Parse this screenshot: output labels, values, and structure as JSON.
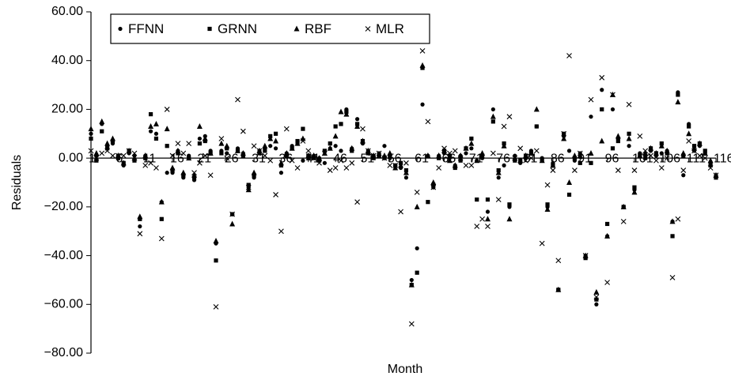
{
  "chart_data": {
    "type": "scatter",
    "y_label": "Residuals",
    "x_label": "Month",
    "x": [
      1,
      2,
      3,
      4,
      5,
      6,
      7,
      8,
      9,
      10,
      11,
      12,
      13,
      14,
      15,
      16,
      17,
      18,
      19,
      20,
      21,
      22,
      23,
      24,
      25,
      26,
      27,
      28,
      29,
      30,
      31,
      32,
      33,
      34,
      35,
      36,
      37,
      38,
      39,
      40,
      41,
      42,
      43,
      44,
      45,
      46,
      47,
      48,
      49,
      50,
      51,
      52,
      53,
      54,
      55,
      56,
      57,
      58,
      59,
      60,
      61,
      62,
      63,
      64,
      65,
      66,
      67,
      68,
      69,
      70,
      71,
      72,
      73,
      74,
      75,
      76,
      77,
      78,
      79,
      80,
      81,
      82,
      83,
      84,
      85,
      86,
      87,
      88,
      89,
      90,
      91,
      92,
      93,
      94,
      95,
      96,
      97,
      98,
      99,
      100,
      101,
      102,
      103,
      104,
      105,
      106,
      107,
      108,
      109,
      110,
      111,
      112,
      113,
      114,
      115,
      116
    ],
    "xlim": [
      1,
      116
    ],
    "xticks": [
      1,
      6,
      11,
      16,
      21,
      26,
      31,
      36,
      41,
      46,
      51,
      56,
      61,
      66,
      71,
      76,
      81,
      86,
      91,
      96,
      101,
      106,
      111,
      116
    ],
    "ylim": [
      -80,
      60
    ],
    "yticks": [
      {
        "value": -80,
        "label": "−80.00"
      },
      {
        "value": -60,
        "label": "−60.00"
      },
      {
        "value": -40,
        "label": "−40.00"
      },
      {
        "value": -20,
        "label": "−20.00"
      },
      {
        "value": 0,
        "label": "0.00"
      },
      {
        "value": 20,
        "label": "20.00"
      },
      {
        "value": 40,
        "label": "40.00"
      },
      {
        "value": 60,
        "label": "60.00"
      }
    ],
    "legend": "upper left",
    "series": [
      {
        "name": "FFNN",
        "marker": "circle",
        "color": "#000000",
        "values": [
          10,
          1,
          14,
          5,
          6,
          1,
          -3,
          2,
          1,
          -28,
          1,
          11,
          10,
          -18,
          -6,
          -6,
          3,
          -8,
          1,
          -9,
          8,
          9,
          3,
          -35,
          3,
          2,
          -23,
          4,
          2,
          -12,
          -8,
          3,
          4,
          5,
          4,
          -6,
          2,
          5,
          6,
          -1,
          0,
          1,
          0,
          -2,
          4,
          5,
          3,
          20,
          4,
          16,
          6,
          3,
          1,
          2,
          5,
          0,
          -3,
          -4,
          -8,
          -50,
          -37,
          22,
          1,
          -12,
          1,
          2,
          0,
          -3,
          1,
          2,
          4,
          -1,
          0,
          -22,
          20,
          -8,
          -3,
          -20,
          1,
          -2,
          0,
          3,
          13,
          0,
          -20,
          -2,
          -54,
          9,
          3,
          -1,
          2,
          -40,
          17,
          -60,
          28,
          -32,
          20,
          8,
          -20,
          5,
          -13,
          2,
          1,
          3,
          1,
          2,
          3,
          -26,
          27,
          -7,
          14,
          3,
          5,
          2,
          -2,
          -7
        ]
      },
      {
        "name": "GRNN",
        "marker": "square",
        "color": "#000000",
        "values": [
          8,
          -1,
          11,
          4,
          7,
          0,
          -2,
          3,
          -1,
          -25,
          0,
          18,
          8,
          -25,
          5,
          -5,
          2,
          -7,
          0,
          -8,
          6,
          7,
          2,
          -42,
          2,
          4,
          -23,
          3,
          1,
          -11,
          -7,
          2,
          3,
          9,
          10,
          -3,
          1,
          4,
          7,
          12,
          1,
          0,
          -1,
          3,
          6,
          13,
          14,
          19,
          3,
          14,
          7,
          2,
          0,
          1,
          0,
          1,
          -3,
          -2,
          -5,
          -52,
          -47,
          37,
          -18,
          -11,
          0,
          3,
          1,
          -4,
          -1,
          4,
          8,
          -17,
          1,
          -17,
          15,
          -5,
          6,
          -19,
          -1,
          -1,
          1,
          2,
          13,
          -1,
          -19,
          -3,
          -54,
          10,
          -15,
          0,
          -2,
          -41,
          -2,
          -58,
          20,
          -27,
          4,
          7,
          -20,
          10,
          -12,
          1,
          0,
          4,
          2,
          6,
          2,
          -32,
          26,
          1,
          13,
          5,
          6,
          3,
          -3,
          -8
        ]
      },
      {
        "name": "RBF",
        "marker": "triangle",
        "color": "#000000",
        "values": [
          12,
          2,
          15,
          6,
          8,
          1,
          -2,
          3,
          0,
          -24,
          1,
          13,
          14,
          -18,
          12,
          -4,
          3,
          -6,
          0,
          -7,
          13,
          8,
          2,
          -34,
          6,
          5,
          -27,
          3,
          2,
          -13,
          -6,
          3,
          5,
          8,
          7,
          -2,
          2,
          4,
          6,
          8,
          1,
          1,
          0,
          2,
          4,
          9,
          19,
          18,
          4,
          13,
          7,
          3,
          1,
          1,
          1,
          2,
          -4,
          -3,
          -6,
          -52,
          -20,
          38,
          1,
          -10,
          1,
          3,
          -1,
          -3,
          1,
          4,
          6,
          -1,
          2,
          -25,
          17,
          -6,
          5,
          -25,
          0,
          -1,
          1,
          2,
          20,
          -1,
          -21,
          -3,
          -54,
          8,
          -10,
          1,
          1,
          -40,
          2,
          -55,
          7,
          -32,
          26,
          9,
          -20,
          8,
          -14,
          1,
          2,
          4,
          2,
          5,
          3,
          -26,
          23,
          2,
          10,
          4,
          6,
          2,
          -1,
          -7
        ]
      },
      {
        "name": "MLR",
        "marker": "cross",
        "color": "#000000",
        "values": [
          3,
          0,
          2,
          3,
          1,
          1,
          1,
          3,
          2,
          -31,
          -3,
          -2,
          -4,
          -33,
          20,
          1,
          6,
          2,
          6,
          -6,
          -2,
          1,
          -7,
          -61,
          8,
          0,
          -23,
          24,
          11,
          -12,
          5,
          3,
          1,
          -1,
          -15,
          -30,
          12,
          -1,
          -4,
          7,
          3,
          0,
          -2,
          2,
          -5,
          -4,
          -1,
          -4,
          -2,
          -18,
          12,
          3,
          1,
          2,
          0,
          -3,
          -3,
          -22,
          -2,
          -68,
          -14,
          44,
          15,
          -12,
          -4,
          4,
          2,
          3,
          0,
          -3,
          -3,
          -28,
          -25,
          -28,
          2,
          -17,
          13,
          17,
          0,
          4,
          -1,
          0,
          3,
          -35,
          -11,
          -5,
          -42,
          10,
          42,
          -5,
          2,
          -40,
          24,
          -57,
          33,
          -51,
          26,
          -5,
          -26,
          22,
          -5,
          9,
          3,
          1,
          -1,
          -4,
          0,
          -49,
          -25,
          -5,
          7,
          3,
          1,
          0,
          -4,
          -7
        ]
      }
    ]
  }
}
